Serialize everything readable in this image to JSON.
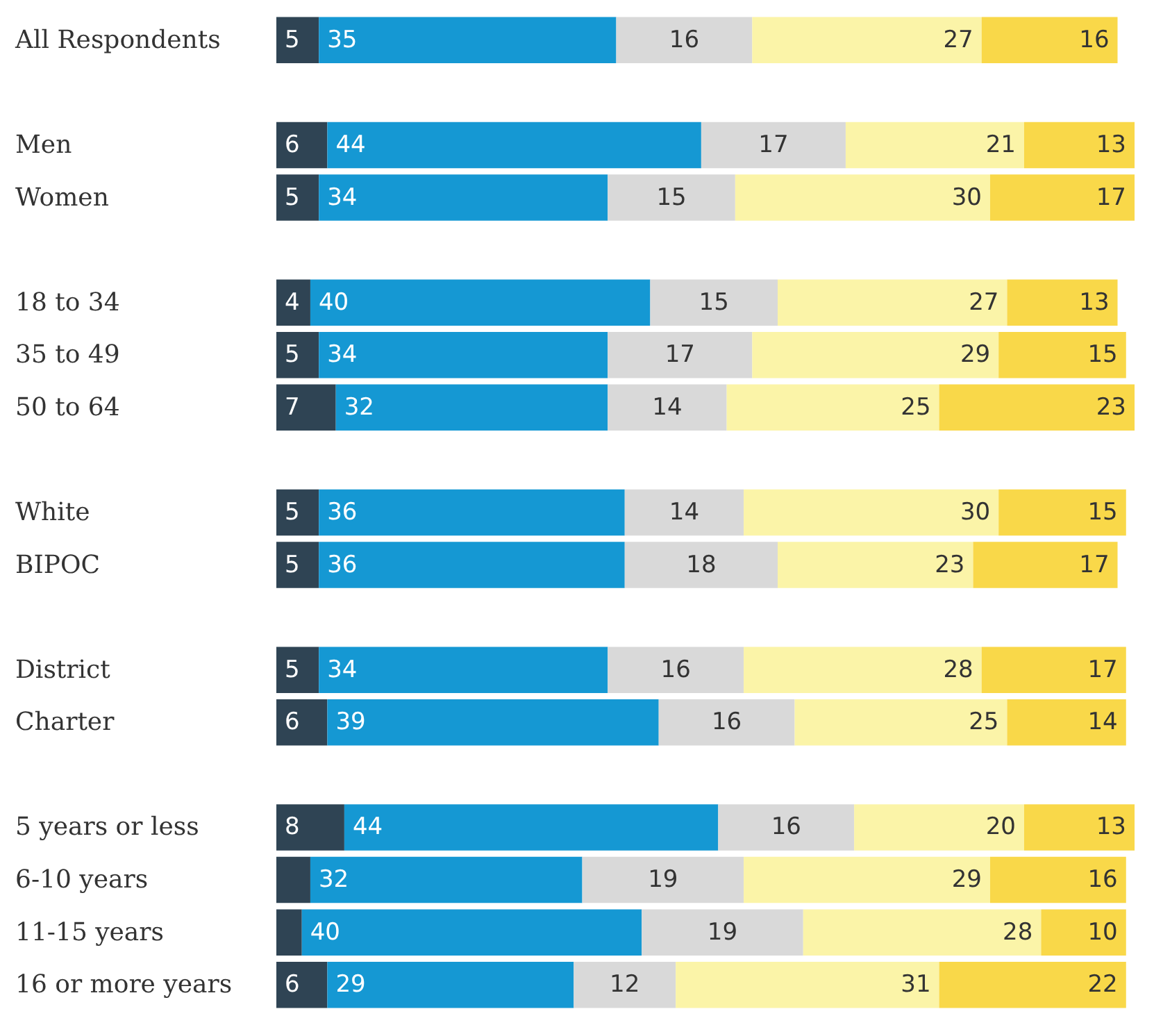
{
  "chart_data": {
    "type": "bar",
    "orientation": "horizontal",
    "stacked": true,
    "xlim": [
      0,
      101
    ],
    "tick_labels": "y",
    "categories": [
      "All Respondents",
      null,
      "Men",
      "Women",
      null,
      "18 to 34",
      "35 to 49",
      "50 to 64",
      null,
      "White",
      "BIPOC",
      null,
      "District",
      "Charter",
      null,
      "5 years or less",
      "6-10 years",
      "11-15 years",
      "16 or more years"
    ],
    "series": [
      {
        "color": "#2f4454",
        "values": [
          5,
          null,
          6,
          5,
          null,
          4,
          5,
          7,
          null,
          5,
          5,
          null,
          5,
          6,
          null,
          8,
          4,
          3,
          6
        ],
        "value_labels": [
          "5",
          null,
          "6",
          "5",
          null,
          "4",
          "5",
          "7",
          null,
          "5",
          "5",
          null,
          "5",
          "6",
          null,
          "8",
          null,
          null,
          "6"
        ]
      },
      {
        "color": "#1598d3",
        "values": [
          35,
          null,
          44,
          34,
          null,
          40,
          34,
          32,
          null,
          36,
          36,
          null,
          34,
          39,
          null,
          44,
          32,
          40,
          29
        ],
        "value_labels": [
          "35",
          null,
          "44",
          "34",
          null,
          "40",
          "34",
          "32",
          null,
          "36",
          "36",
          null,
          "34",
          "39",
          null,
          "44",
          "32",
          "40",
          "29"
        ]
      },
      {
        "color": "#d9d9d9",
        "values": [
          16,
          null,
          17,
          15,
          null,
          15,
          17,
          14,
          null,
          14,
          18,
          null,
          16,
          16,
          null,
          16,
          19,
          19,
          12
        ],
        "value_labels": [
          "16",
          null,
          "17",
          "15",
          null,
          "15",
          "17",
          "14",
          null,
          "14",
          "18",
          null,
          "16",
          "16",
          null,
          "16",
          "19",
          "19",
          "12"
        ]
      },
      {
        "color": "#fbf4a8",
        "values": [
          27,
          null,
          21,
          30,
          null,
          27,
          29,
          25,
          null,
          30,
          23,
          null,
          28,
          25,
          null,
          20,
          29,
          28,
          31
        ],
        "value_labels": [
          "27",
          null,
          "21",
          "30",
          null,
          "27",
          "29",
          "25",
          null,
          "30",
          "23",
          null,
          "28",
          "25",
          null,
          "20",
          "29",
          "28",
          "31"
        ]
      },
      {
        "color": "#f9d849",
        "values": [
          16,
          null,
          13,
          17,
          null,
          13,
          15,
          23,
          null,
          15,
          17,
          null,
          17,
          14,
          null,
          13,
          16,
          10,
          22
        ],
        "value_labels": [
          "16",
          null,
          "13",
          "17",
          null,
          "13",
          "15",
          "23",
          null,
          "15",
          "17",
          null,
          "17",
          "14",
          null,
          "13",
          "16",
          "10",
          "22"
        ]
      }
    ]
  }
}
